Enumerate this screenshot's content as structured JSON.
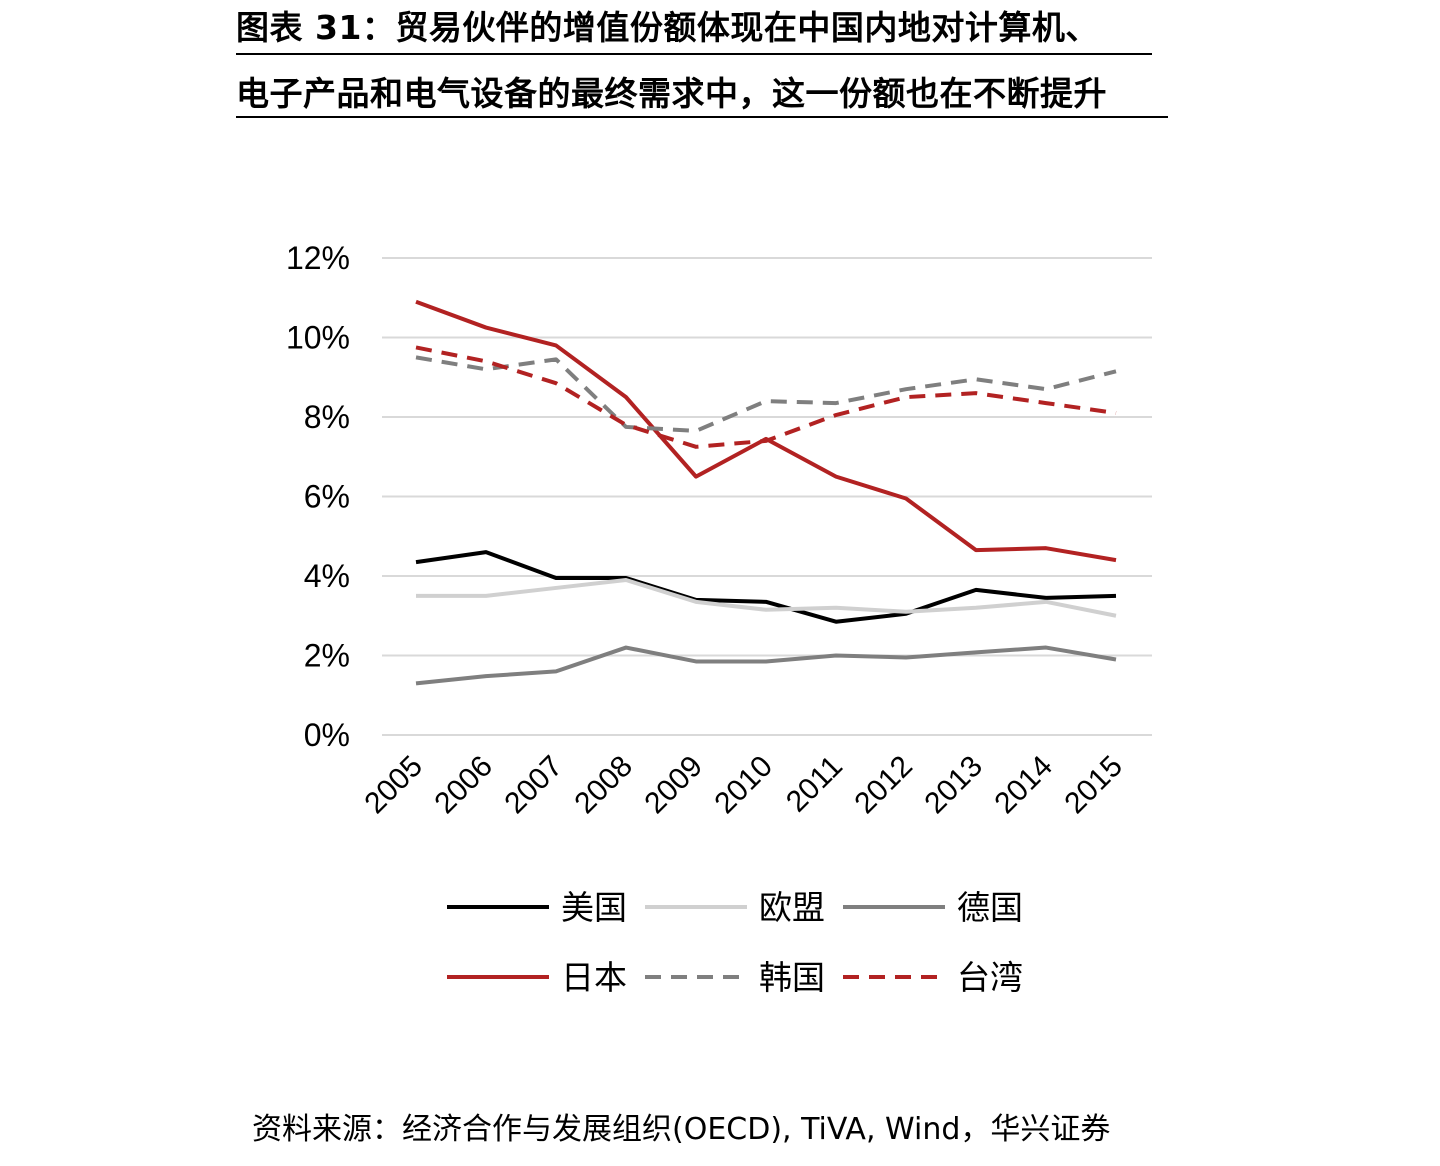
{
  "title": {
    "line1": "图表 31：贸易伙伴的增值份额体现在中国内地对计算机、",
    "line2": "电子产品和电气设备的最终需求中，这一份额也在不断提升"
  },
  "source": "资料来源：经济合作与发展组织(OECD), TiVA, Wind，华兴证券",
  "chart_data": {
    "type": "line",
    "title": "",
    "xlabel": "",
    "ylabel": "",
    "x": [
      "2005",
      "2006",
      "2007",
      "2008",
      "2009",
      "2010",
      "2011",
      "2012",
      "2013",
      "2014",
      "2015"
    ],
    "ylim": [
      0,
      12
    ],
    "yticks": [
      "0%",
      "2%",
      "4%",
      "6%",
      "8%",
      "10%",
      "12%"
    ],
    "ytick_values": [
      0,
      2,
      4,
      6,
      8,
      10,
      12
    ],
    "grid": "horizontal",
    "legend_position": "bottom",
    "series": [
      {
        "name": "美国",
        "color": "#000000",
        "dash": "solid",
        "values": [
          4.35,
          4.6,
          3.95,
          3.95,
          3.4,
          3.35,
          2.85,
          3.05,
          3.65,
          3.45,
          3.5
        ]
      },
      {
        "name": "欧盟",
        "color": "#d0d0d0",
        "dash": "solid",
        "values": [
          3.5,
          3.5,
          3.7,
          3.9,
          3.35,
          3.15,
          3.2,
          3.1,
          3.2,
          3.35,
          3.0
        ]
      },
      {
        "name": "德国",
        "color": "#7f7f7f",
        "dash": "solid",
        "values": [
          1.3,
          1.48,
          1.6,
          2.2,
          1.85,
          1.85,
          2.0,
          1.95,
          2.08,
          2.2,
          1.9
        ]
      },
      {
        "name": "日本",
        "color": "#b22222",
        "dash": "solid",
        "values": [
          10.9,
          10.25,
          9.8,
          8.5,
          6.5,
          7.45,
          6.5,
          5.95,
          4.65,
          4.7,
          4.4
        ]
      },
      {
        "name": "韩国",
        "color": "#7f7f7f",
        "dash": "dashed",
        "values": [
          9.5,
          9.2,
          9.45,
          7.75,
          7.65,
          8.4,
          8.35,
          8.7,
          8.95,
          8.7,
          9.15
        ]
      },
      {
        "name": "台湾",
        "color": "#b22222",
        "dash": "dashed",
        "values": [
          9.75,
          9.4,
          8.85,
          7.8,
          7.25,
          7.4,
          8.05,
          8.5,
          8.6,
          8.35,
          8.1
        ]
      }
    ]
  }
}
